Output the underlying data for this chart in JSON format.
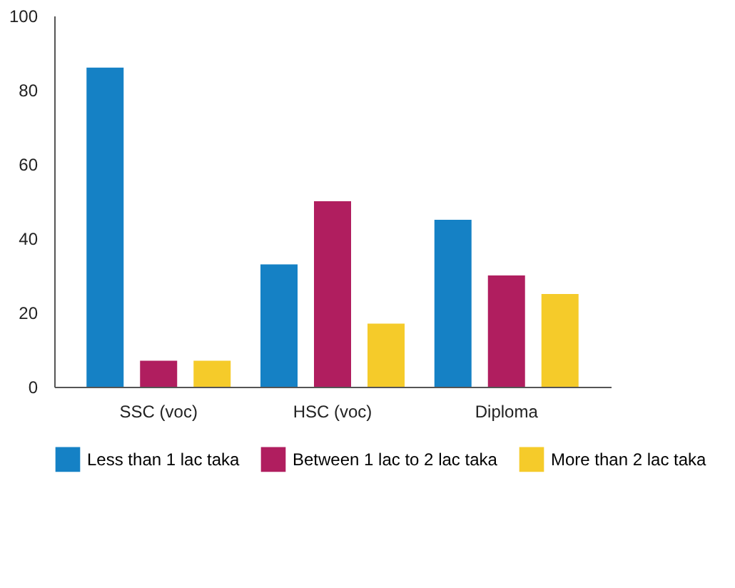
{
  "chart_data": {
    "type": "bar",
    "categories": [
      "SSC (voc)",
      "HSC (voc)",
      "Diploma"
    ],
    "series": [
      {
        "name": "Less than 1 lac taka",
        "color": "#1581c5",
        "values": [
          86,
          33,
          45
        ]
      },
      {
        "name": "Between 1 lac to 2 lac taka",
        "color": "#b01e5f",
        "values": [
          7,
          50,
          30
        ]
      },
      {
        "name": "More than 2 lac taka",
        "color": "#f5cb2a",
        "values": [
          7,
          17,
          25
        ]
      }
    ],
    "ylim": [
      0,
      100
    ],
    "yticks": [
      0,
      20,
      40,
      60,
      80,
      100
    ],
    "grid": false,
    "legend": "bottom"
  }
}
